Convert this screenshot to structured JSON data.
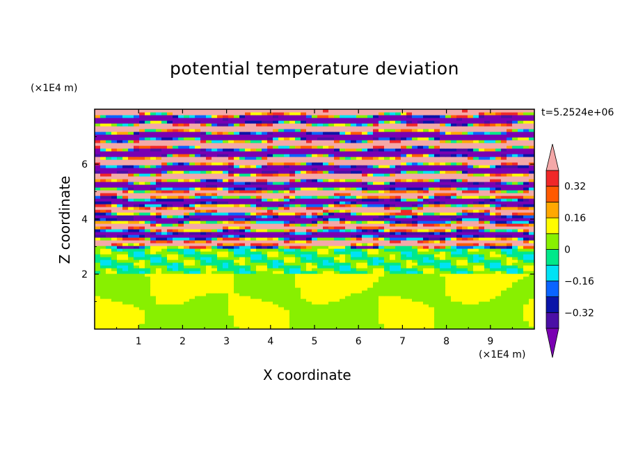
{
  "chart_data": {
    "type": "heatmap",
    "title": "potential temperature deviation",
    "xlabel": "X coordinate",
    "ylabel": "Z coordinate",
    "x_unit": "(×1E4 m)",
    "z_unit": "(×1E4 m)",
    "time_label": "t=5.2524e+06",
    "xlim": [
      0,
      10
    ],
    "ylim": [
      0,
      8
    ],
    "x_ticks": [
      "1",
      "2",
      "3",
      "4",
      "5",
      "6",
      "7",
      "8",
      "9"
    ],
    "y_ticks": [
      "2",
      "4",
      "6"
    ],
    "colorbar": {
      "levels": [
        -0.4,
        -0.32,
        -0.24,
        -0.16,
        -0.08,
        0,
        0.08,
        0.16,
        0.24,
        0.32,
        0.4
      ],
      "tick_labels": [
        "0.32",
        "0.16",
        "0",
        "−0.16",
        "−0.32"
      ],
      "tick_values": [
        0.32,
        0.16,
        0,
        -0.16,
        -0.32
      ],
      "colors": [
        "#7a00b2",
        "#4b0fa6",
        "#0a14a8",
        "#0a64ff",
        "#00e2f5",
        "#00e88a",
        "#88f000",
        "#fffc00",
        "#ffa800",
        "#ff5a00",
        "#f02828",
        "#f4a8a8"
      ],
      "extend": "both"
    },
    "layers": [
      {
        "z_range": [
          0,
          2
        ],
        "description_values": "alternating 0 to 0.08 and 0.08 to 0.16 cells"
      },
      {
        "z_range": [
          2,
          3
        ],
        "description_values": "mixed -0.08 to 0.08 with small positive and negative patches"
      },
      {
        "z_range": [
          3,
          8
        ],
        "description_values": "alternating strong positive (>0.4) and strong negative (<-0.4) stratified bands with mixing near z=4-5"
      }
    ]
  }
}
